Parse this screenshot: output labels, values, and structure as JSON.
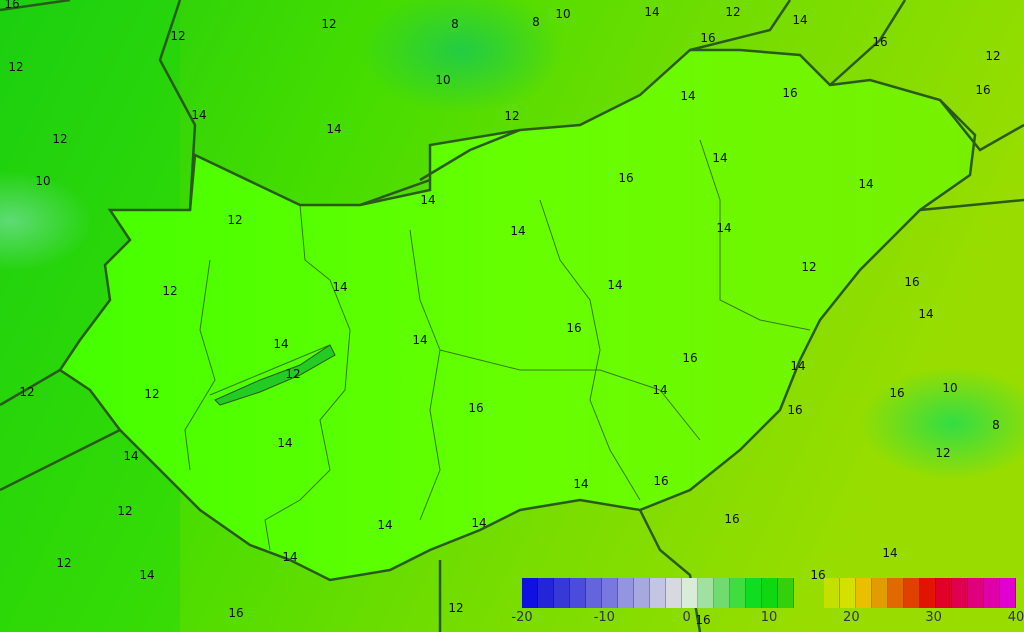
{
  "map": {
    "colors": {
      "outside_base": "#22dd00",
      "hungary_fill": "#44ff00",
      "warm_east": "#99dd00",
      "cool_west": "#11cc11",
      "border": "#2a5a1a"
    },
    "contour_labels": [
      "12",
      "12",
      "8",
      "10",
      "14",
      "12",
      "14",
      "10",
      "12",
      "14",
      "12",
      "16",
      "16",
      "14",
      "16",
      "14",
      "12",
      "10",
      "8",
      "12",
      "12",
      "14",
      "14",
      "16",
      "14",
      "12",
      "14",
      "16",
      "14",
      "12",
      "14",
      "14",
      "16",
      "14",
      "16",
      "16",
      "14",
      "12",
      "14",
      "14",
      "16",
      "14",
      "16",
      "16",
      "14",
      "14",
      "16",
      "14",
      "12",
      "14",
      "12",
      "12",
      "16",
      "14",
      "10",
      "8",
      "12",
      "16",
      "16",
      "16",
      "14",
      "14",
      "12",
      "14",
      "16",
      "12"
    ]
  },
  "legend": {
    "colors": [
      "#1010e0",
      "#2424d8",
      "#3838d8",
      "#4c4cdc",
      "#6464dc",
      "#7878e0",
      "#9494e0",
      "#a8a8e0",
      "#c4c4e4",
      "#d8d8e0",
      "#d8ecd8",
      "#a0e0a0",
      "#70dc70",
      "#40dc40",
      "#10dc20",
      "#10d810",
      "#34d00c",
      "transparent",
      "transparent",
      "#c4e000",
      "#d4e000",
      "#e8c000",
      "#e09c00",
      "#e06a00",
      "#e04000",
      "#e01400",
      "#e00028",
      "#e00050",
      "#e0007c",
      "#e000a8",
      "#e000d0"
    ],
    "ticks": [
      "-20",
      "-10",
      "0",
      "10",
      "20",
      "30",
      "40"
    ]
  }
}
